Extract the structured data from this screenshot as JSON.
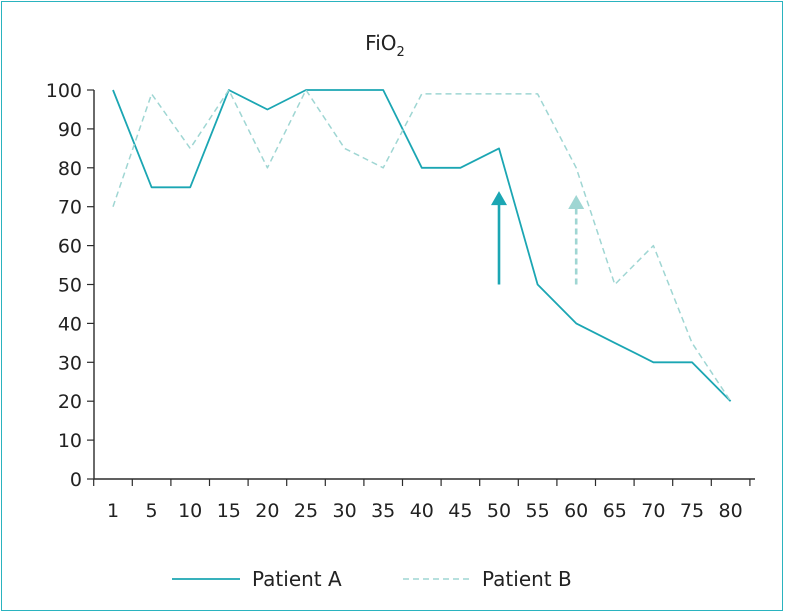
{
  "chart_data": {
    "type": "line",
    "title": "FiO",
    "title_subscript": "2",
    "xlabel": "",
    "ylabel": "",
    "x": [
      1,
      5,
      10,
      15,
      20,
      25,
      30,
      35,
      40,
      45,
      50,
      55,
      60,
      65,
      70,
      75,
      80
    ],
    "ylim": [
      0,
      100
    ],
    "yticks": [
      0,
      10,
      20,
      30,
      40,
      50,
      60,
      70,
      80,
      90,
      100
    ],
    "series": [
      {
        "name": "Patient A",
        "style": "solid",
        "color": "#1ba6b3",
        "values": [
          100,
          75,
          75,
          100,
          95,
          100,
          100,
          100,
          80,
          80,
          85,
          50,
          40,
          35,
          30,
          30,
          20
        ]
      },
      {
        "name": "Patient B",
        "style": "dashed",
        "color": "#9fd6d3",
        "values": [
          70,
          99,
          85,
          100,
          80,
          100,
          85,
          80,
          99,
          99,
          99,
          99,
          80,
          50,
          60,
          35,
          20
        ]
      }
    ],
    "annotations": [
      {
        "type": "arrow",
        "style": "solid",
        "color": "#1ba6b3",
        "x": 50,
        "y_from": 50,
        "y_to": 74
      },
      {
        "type": "arrow",
        "style": "dashed",
        "color": "#9fd6d3",
        "x": 60,
        "y_from": 50,
        "y_to": 73
      }
    ],
    "grid": false,
    "legend_position": "bottom"
  }
}
